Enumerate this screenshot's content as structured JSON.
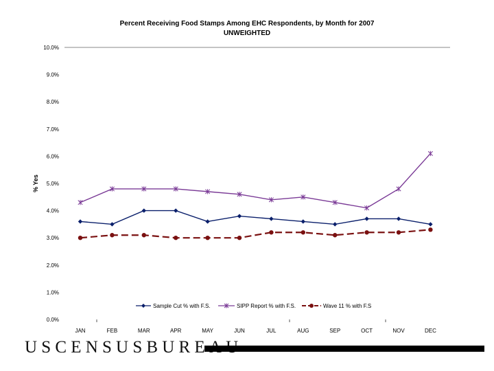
{
  "chart_data": {
    "type": "line",
    "title": "Percent Receiving Food Stamps Among EHC Respondents, by Month for 2007",
    "subtitle": "UNWEIGHTED",
    "ylabel": "% Yes",
    "xlabel": "",
    "ylim": [
      0,
      10
    ],
    "yticks": [
      "0.0%",
      "1.0%",
      "2.0%",
      "3.0%",
      "4.0%",
      "5.0%",
      "6.0%",
      "7.0%",
      "8.0%",
      "9.0%",
      "10.0%"
    ],
    "categories": [
      "JAN",
      "FEB",
      "MAR",
      "APR",
      "MAY",
      "JUN",
      "JUL",
      "AUG",
      "SEP",
      "OCT",
      "NOV",
      "DEC"
    ],
    "legend_position": "bottom",
    "series": [
      {
        "name": "Sample Cut % with F.S.",
        "color": "#0a1f6b",
        "marker": "diamond",
        "dash": "solid",
        "values": [
          3.6,
          3.5,
          4.0,
          4.0,
          3.6,
          3.8,
          3.7,
          3.6,
          3.5,
          3.7,
          3.7,
          3.5
        ]
      },
      {
        "name": "SIPP Report % with F.S.",
        "color": "#7a3a96",
        "marker": "star",
        "dash": "solid",
        "values": [
          4.3,
          4.8,
          4.8,
          4.8,
          4.7,
          4.6,
          4.4,
          4.5,
          4.3,
          4.1,
          4.8,
          6.1
        ]
      },
      {
        "name": "Wave 11 % with F.S",
        "color": "#7a1010",
        "marker": "circle",
        "dash": "dashed",
        "values": [
          3.0,
          3.1,
          3.1,
          3.0,
          3.0,
          3.0,
          3.2,
          3.2,
          3.1,
          3.2,
          3.2,
          3.3
        ]
      }
    ]
  },
  "footer": {
    "brand": "USCENSUSBUREAU"
  }
}
